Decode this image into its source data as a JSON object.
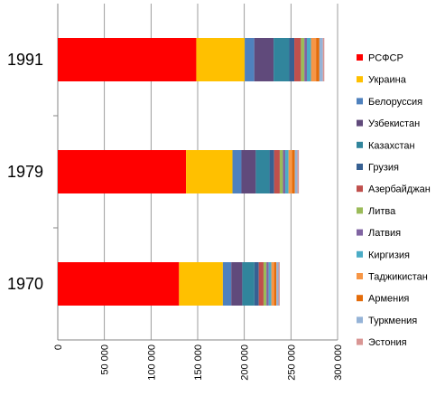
{
  "chart_data": {
    "type": "bar",
    "orientation": "horizontal",
    "stacked": true,
    "categories": [
      "1970",
      "1979",
      "1991"
    ],
    "xlim": [
      0,
      300000
    ],
    "x_ticks": [
      "0",
      "50 000",
      "100 000",
      "150 000",
      "200 000",
      "250 000",
      "300 000"
    ],
    "grid": true,
    "legend_position": "right",
    "series": [
      {
        "name": "РСФСР",
        "color": "#ff0000",
        "values": [
          130000,
          137500,
          148500
        ]
      },
      {
        "name": "Украина",
        "color": "#ffc000",
        "values": [
          47000,
          49800,
          51900
        ]
      },
      {
        "name": "Белоруссия",
        "color": "#4f81bd",
        "values": [
          9000,
          9600,
          10300
        ]
      },
      {
        "name": "Узбекистан",
        "color": "#604a7b",
        "values": [
          11800,
          15400,
          20700
        ]
      },
      {
        "name": "Казахстан",
        "color": "#31859c",
        "values": [
          13000,
          14700,
          16800
        ]
      },
      {
        "name": "Грузия",
        "color": "#376092",
        "values": [
          4700,
          5000,
          5400
        ]
      },
      {
        "name": "Азербайджан",
        "color": "#c0504d",
        "values": [
          5100,
          6000,
          7100
        ]
      },
      {
        "name": "Литва",
        "color": "#9bbb59",
        "values": [
          3100,
          3400,
          3700
        ]
      },
      {
        "name": "Латвия",
        "color": "#8064a2",
        "values": [
          2400,
          2500,
          2700
        ]
      },
      {
        "name": "Киргизия",
        "color": "#4bacc6",
        "values": [
          2900,
          3500,
          4400
        ]
      },
      {
        "name": "Таджикистан",
        "color": "#f79646",
        "values": [
          2900,
          3800,
          5400
        ]
      },
      {
        "name": "Армения",
        "color": "#e46c0a",
        "values": [
          2500,
          3000,
          3600
        ]
      },
      {
        "name": "Туркмения",
        "color": "#95b3d7",
        "values": [
          2200,
          2800,
          3700
        ]
      },
      {
        "name": "Эстония",
        "color": "#d99694",
        "values": [
          1400,
          1500,
          1600
        ]
      }
    ]
  }
}
